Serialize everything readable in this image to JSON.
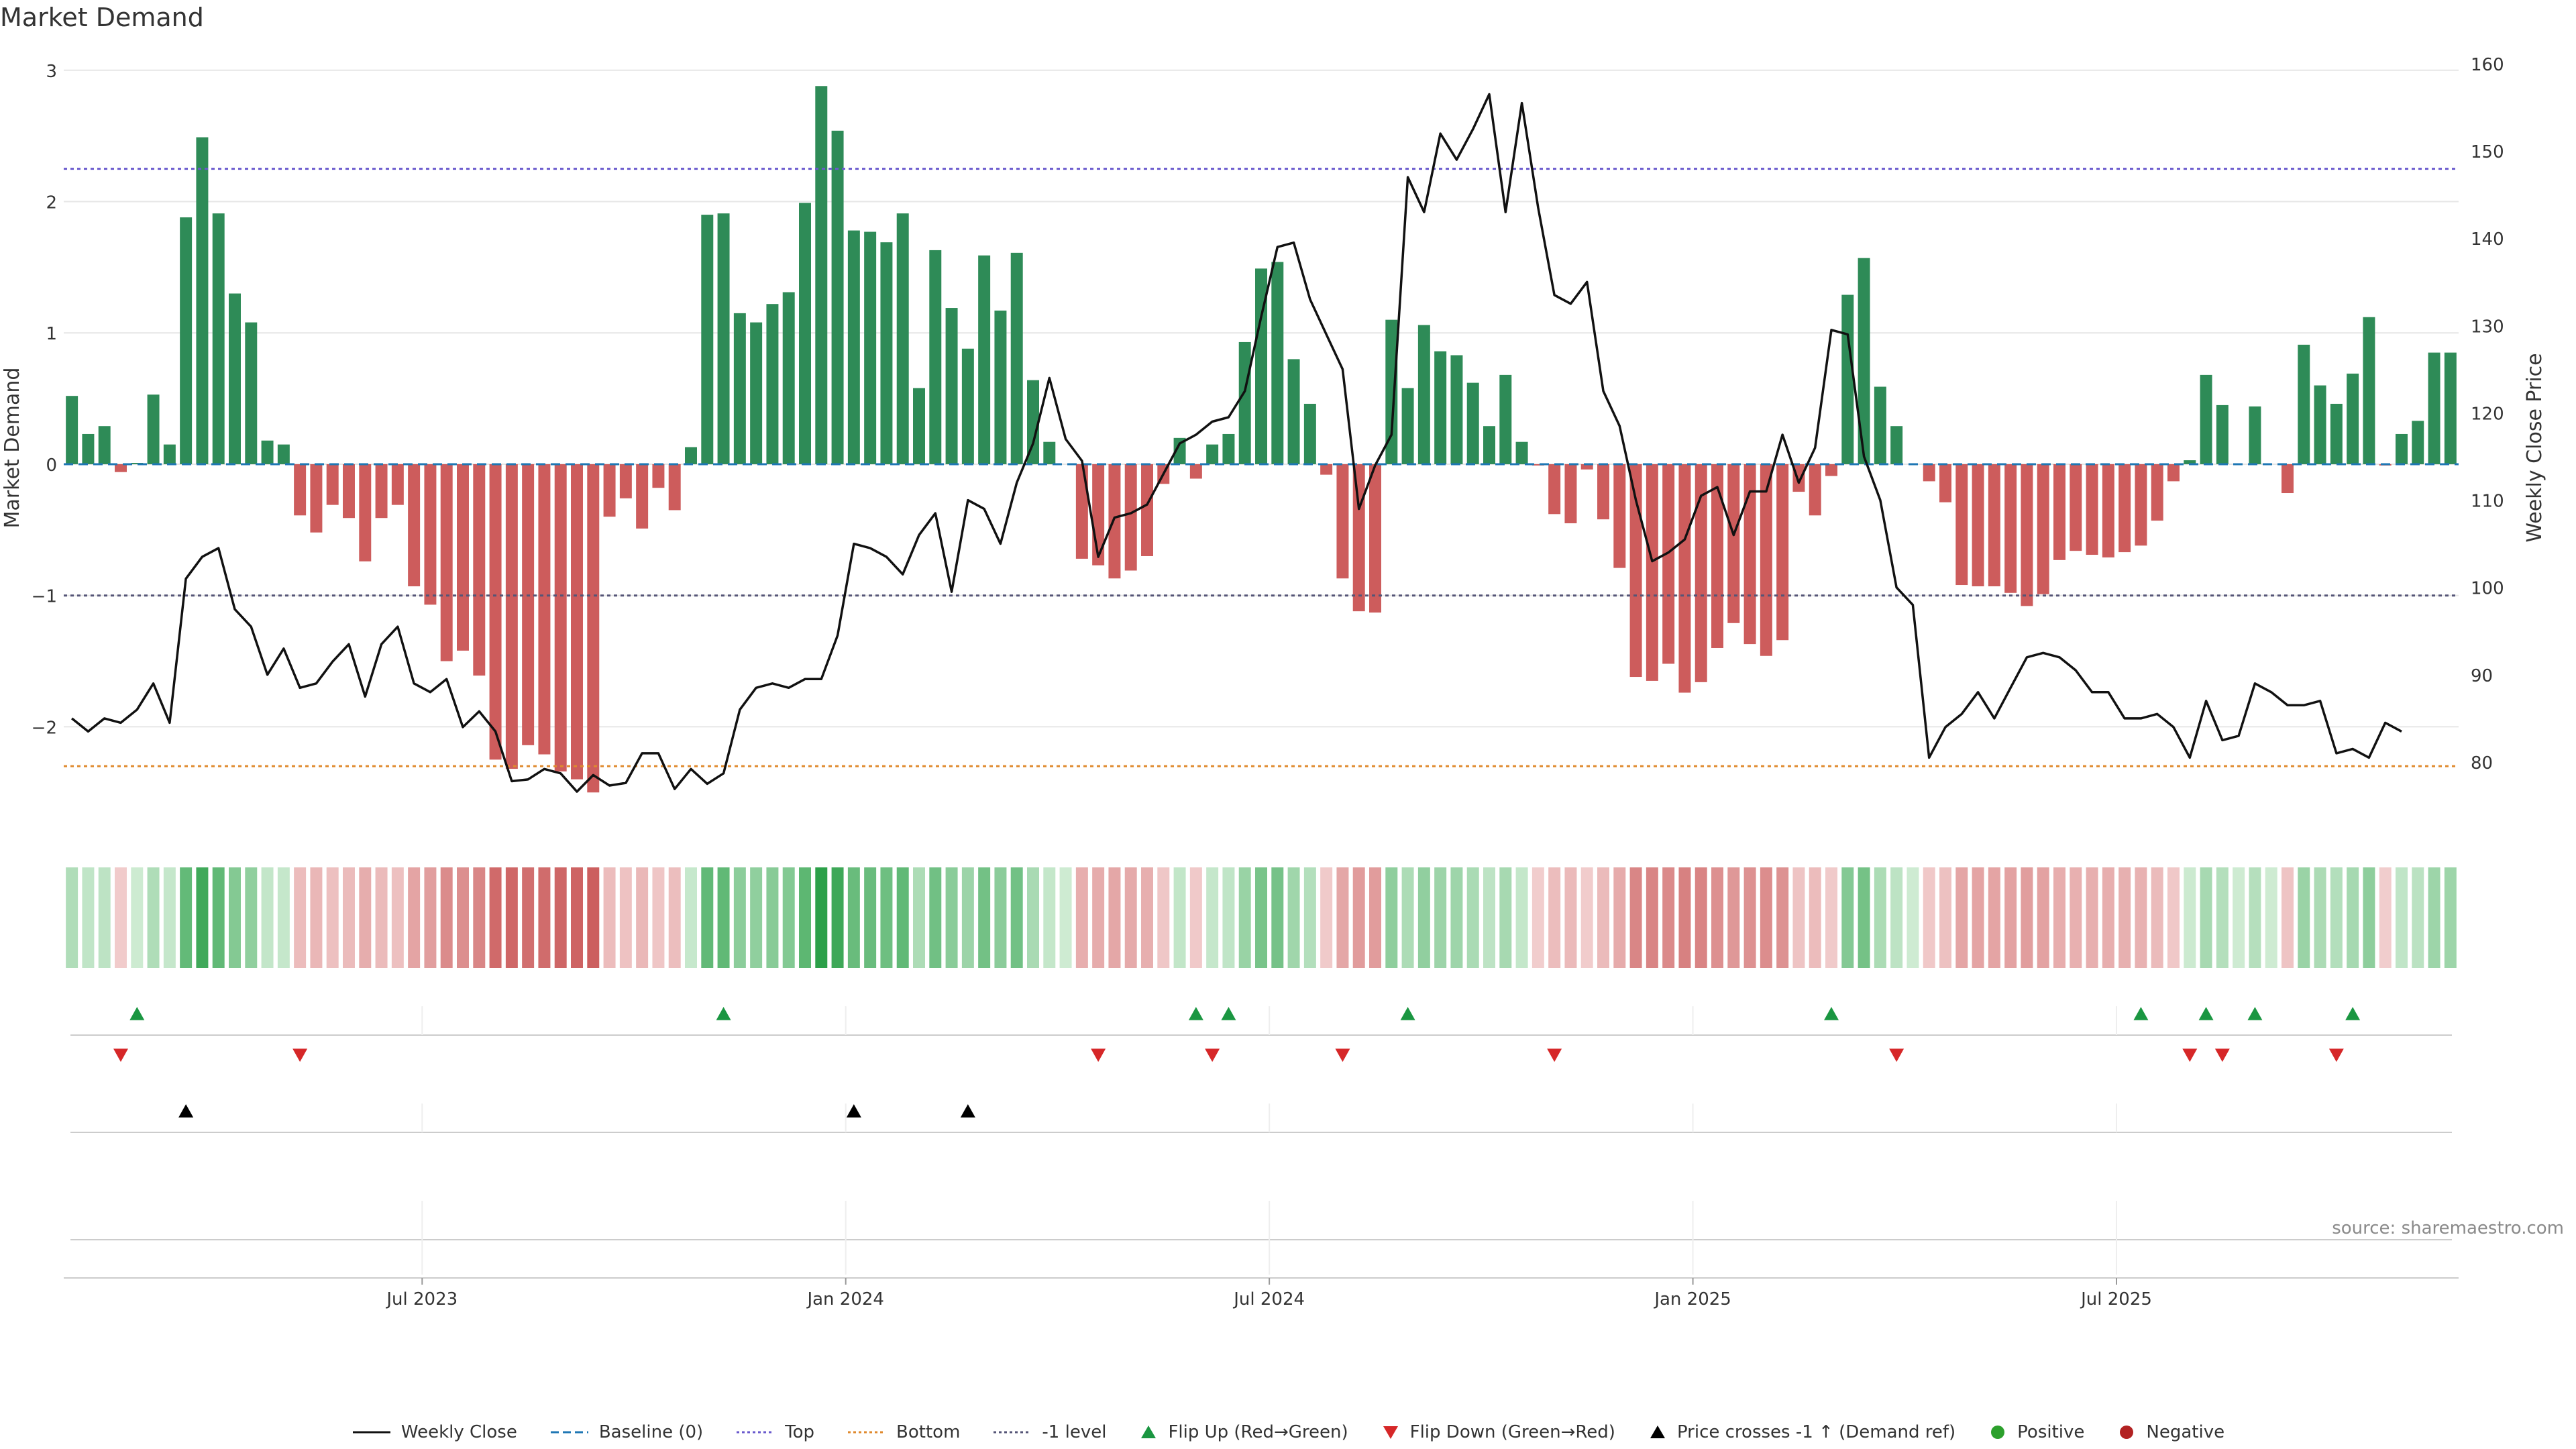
{
  "chart_data": {
    "type": "bar",
    "title": "Market Demand",
    "ylabel": "Market Demand",
    "y2label": "Weekly Close Price",
    "ylim": [
      -2.8,
      3.05
    ],
    "y2lim": [
      72,
      160
    ],
    "yticks": [
      "3",
      "2",
      "1",
      "0",
      "−1",
      "−2"
    ],
    "y2ticks": [
      "160",
      "150",
      "140",
      "130",
      "120",
      "110",
      "100",
      "90",
      "80"
    ],
    "xticks": [
      {
        "label": "Jul 2023",
        "week": 22
      },
      {
        "label": "Jan 2024",
        "week": 48
      },
      {
        "label": "Jul 2024",
        "week": 74
      },
      {
        "label": "Jan 2025",
        "week": 100
      },
      {
        "label": "Jul 2025",
        "week": 126
      }
    ],
    "reference_lines": {
      "top": 2.25,
      "bottom": -2.3,
      "minus_one": -1,
      "baseline": 0
    },
    "colors": {
      "positive": "#2e8b57",
      "negative": "#cd5c5c",
      "price": "#111111",
      "top": "#6a5acd",
      "bottom": "#e08a2e",
      "minus_one": "#555577",
      "baseline": "#1f77b4",
      "flip_up": "#1a9641",
      "flip_down": "#d62728"
    },
    "demand": [
      0.52,
      0.23,
      0.29,
      -0.06,
      0.01,
      0.53,
      0.15,
      1.88,
      2.49,
      1.91,
      1.3,
      1.08,
      0.18,
      0.15,
      -0.39,
      -0.52,
      -0.31,
      -0.41,
      -0.74,
      -0.41,
      -0.31,
      -0.93,
      -1.07,
      -1.5,
      -1.42,
      -1.61,
      -2.25,
      -2.32,
      -2.14,
      -2.21,
      -2.34,
      -2.4,
      -2.5,
      -0.4,
      -0.26,
      -0.49,
      -0.18,
      -0.35,
      0.13,
      1.9,
      1.91,
      1.15,
      1.08,
      1.22,
      1.31,
      1.99,
      2.88,
      2.54,
      1.78,
      1.77,
      1.69,
      1.91,
      0.58,
      1.63,
      1.19,
      0.88,
      1.59,
      1.17,
      1.61,
      0.64,
      0.17,
      0,
      -0.72,
      -0.77,
      -0.87,
      -0.81,
      -0.7,
      -0.15,
      0.2,
      -0.11,
      0.15,
      0.23,
      0.93,
      1.49,
      1.54,
      0.8,
      0.46,
      -0.08,
      -0.87,
      -1.12,
      -1.13,
      1.1,
      0.58,
      1.06,
      0.86,
      0.83,
      0.62,
      0.29,
      0.68,
      0.17,
      -0.01,
      -0.38,
      -0.45,
      -0.04,
      -0.42,
      -0.79,
      -1.62,
      -1.65,
      -1.52,
      -1.74,
      -1.66,
      -1.4,
      -1.21,
      -1.37,
      -1.46,
      -1.34,
      -0.21,
      -0.39,
      -0.09,
      1.29,
      1.57,
      0.59,
      0.29,
      0,
      -0.13,
      -0.29,
      -0.92,
      -0.93,
      -0.93,
      -0.98,
      -1.08,
      -0.99,
      -0.73,
      -0.66,
      -0.69,
      -0.71,
      -0.67,
      -0.62,
      -0.43,
      -0.13,
      0.03,
      0.68,
      0.45,
      0,
      0.44,
      0,
      -0.22,
      0.91,
      0.6,
      0.46,
      0.69,
      1.12,
      -0.01,
      0.23,
      0.33,
      0.85,
      0.85
    ],
    "close": [
      85,
      83.5,
      85,
      84.5,
      86,
      89,
      84.5,
      101,
      103.5,
      104.5,
      97.5,
      95.5,
      90,
      93,
      88.5,
      89,
      91.5,
      93.5,
      87.5,
      93.5,
      95.5,
      89,
      88,
      89.5,
      84,
      85.8,
      83.5,
      77.8,
      78,
      79.2,
      78.7,
      76.6,
      78.5,
      77.3,
      77.6,
      81,
      81,
      76.9,
      79.2,
      77.5,
      78.7,
      86,
      88.5,
      89,
      88.5,
      89.5,
      89.5,
      94.5,
      105,
      104.5,
      103.5,
      101.5,
      106,
      108.5,
      99.5,
      110,
      109,
      105,
      112,
      116.5,
      124,
      117,
      114.5,
      103.5,
      108,
      108.5,
      109.5,
      113,
      116.5,
      117.5,
      119,
      119.5,
      122.5,
      131,
      139,
      139.5,
      133,
      129,
      125,
      109,
      114,
      117.5,
      147,
      143,
      152,
      149,
      152.5,
      156.5,
      143,
      155.5,
      143.5,
      133.5,
      132.5,
      135,
      122.5,
      118.5,
      110,
      103,
      104,
      105.5,
      110.5,
      111.5,
      106,
      111,
      111,
      117.5,
      112,
      116,
      129.5,
      129,
      115,
      110,
      100,
      98,
      80.5,
      84,
      85.5,
      88,
      85,
      88.5,
      92,
      92.5,
      92,
      90.5,
      88,
      88,
      85,
      85,
      85.5,
      84,
      80.5,
      87,
      82.5,
      83,
      89,
      88,
      86.5,
      86.5,
      87,
      81,
      81.5,
      80.5,
      84.5,
      83.5
    ],
    "bars_positive_above_zero_count": "",
    "flip_up_weeks": [
      4,
      40,
      69,
      71,
      82,
      108,
      127,
      131,
      134,
      140
    ],
    "flip_down_weeks": [
      3,
      14,
      63,
      70,
      78,
      91,
      112,
      130,
      132,
      139
    ],
    "price_cross_weeks": [
      7,
      48,
      55
    ],
    "source": "source: sharemaestro.com"
  },
  "legend": [
    {
      "label": "Weekly Close",
      "kind": "solid",
      "color": "#111111"
    },
    {
      "label": "Baseline (0)",
      "kind": "dashed",
      "color": "#1f77b4"
    },
    {
      "label": "Top",
      "kind": "dotted",
      "color": "#6a5acd"
    },
    {
      "label": "Bottom",
      "kind": "dotted",
      "color": "#e08a2e"
    },
    {
      "label": "-1 level",
      "kind": "dotted",
      "color": "#555577"
    },
    {
      "label": "Flip Up (Red→Green)",
      "kind": "triangle-up",
      "color": "#1a9641"
    },
    {
      "label": "Flip Down (Green→Red)",
      "kind": "triangle-down",
      "color": "#d62728"
    },
    {
      "label": "Price crosses -1 ↑ (Demand ref)",
      "kind": "triangle-up",
      "color": "#000000"
    },
    {
      "label": "Positive",
      "kind": "dot",
      "color": "#2ca02c"
    },
    {
      "label": "Negative",
      "kind": "dot",
      "color": "#b22222"
    }
  ]
}
